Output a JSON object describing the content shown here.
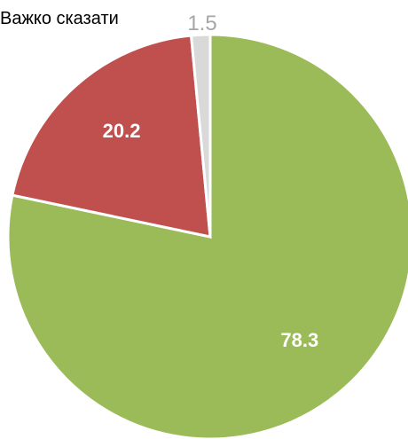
{
  "chart_data": {
    "type": "pie",
    "slices": [
      {
        "label": "",
        "value": 78.3,
        "value_label": "78.3",
        "color": "#9BBB59"
      },
      {
        "label": "",
        "value": 20.2,
        "value_label": "20.2",
        "color": "#C0504D"
      },
      {
        "label": "Важко сказати",
        "value": 1.5,
        "value_label": "1.5",
        "color": "#D9D9D9"
      }
    ],
    "start_angle": "12 o'clock",
    "direction": "clockwise",
    "legend": "none"
  }
}
